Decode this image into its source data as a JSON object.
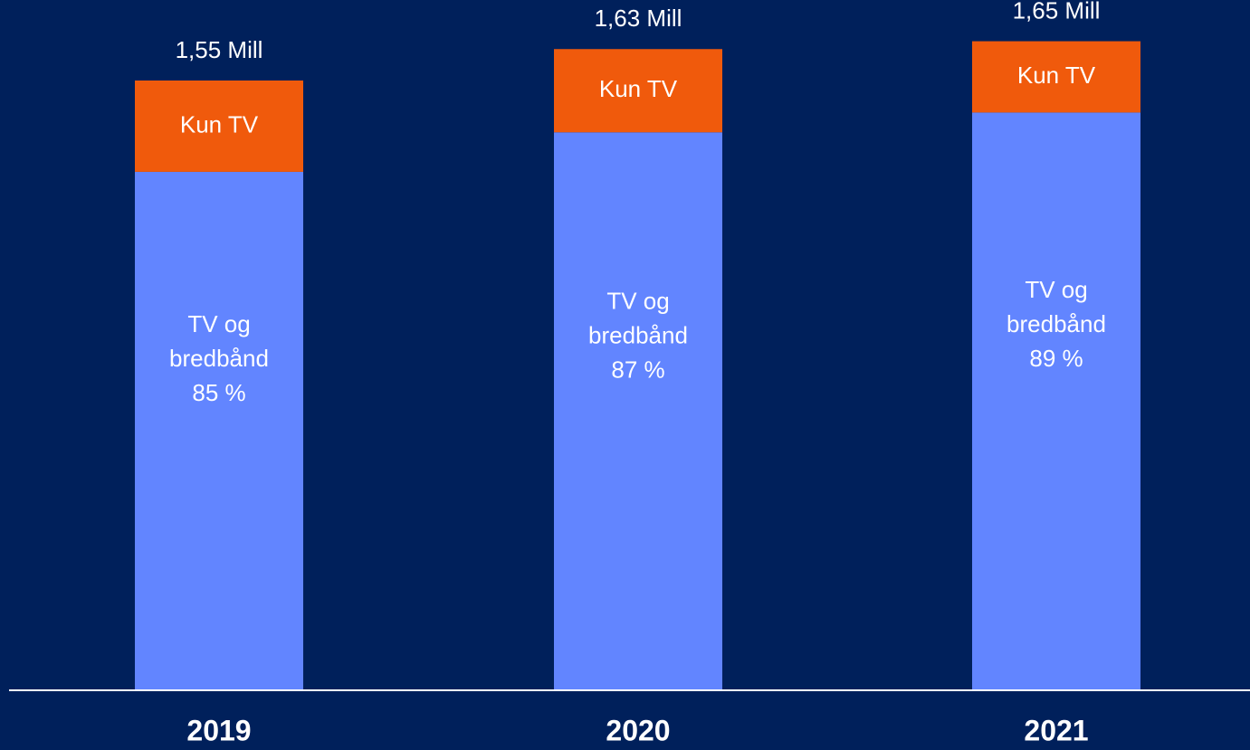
{
  "chart_data": {
    "type": "bar",
    "stacked": true,
    "categories": [
      "2019",
      "2020",
      "2021"
    ],
    "totals": [
      1.55,
      1.63,
      1.65
    ],
    "total_labels": [
      "1,55 Mill",
      "1,63 Mill",
      "1,65 Mill"
    ],
    "series": [
      {
        "name": "TV og bredbånd",
        "values": [
          1.3175,
          1.4181,
          1.4685
        ],
        "share_labels": [
          "85 %",
          "87 %",
          "89 %"
        ],
        "label_line1": "TV og",
        "label_line2": "bredbånd",
        "color": "#6285ff"
      },
      {
        "name": "Kun TV",
        "values": [
          0.2325,
          0.2119,
          0.1815
        ],
        "color": "#f05a0c"
      }
    ],
    "ylim": [
      0,
      1.8
    ],
    "legend": "none",
    "grid": false,
    "background": "#00205b",
    "text_color": "#ffffff",
    "axis_color": "#ffffff"
  }
}
